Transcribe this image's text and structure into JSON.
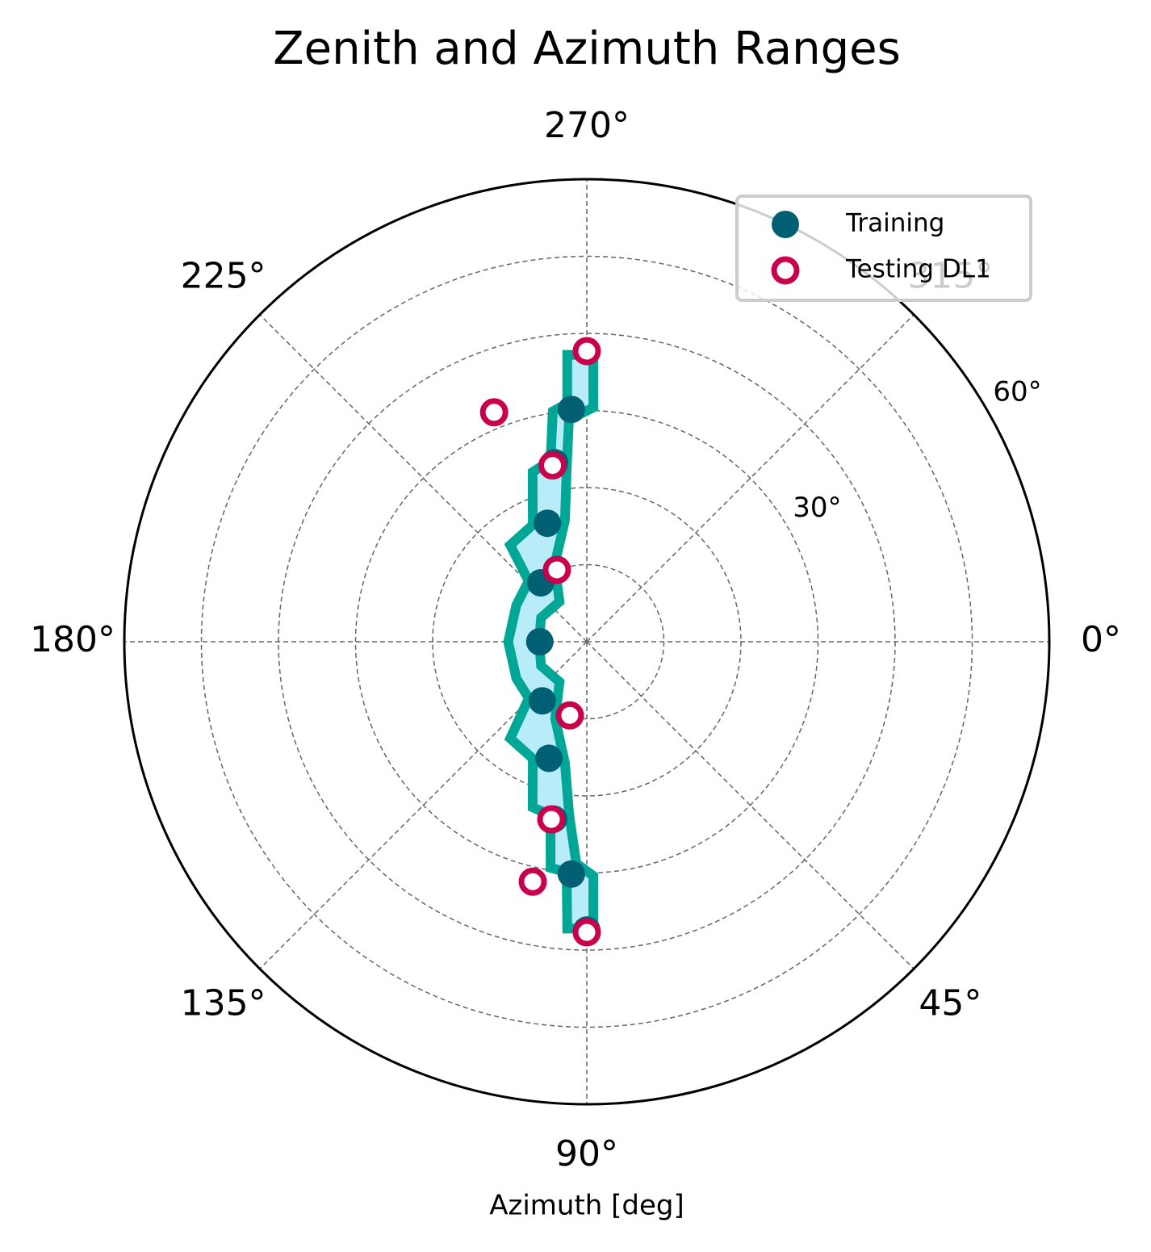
{
  "chart_data": {
    "type": "polar",
    "title": "Zenith and Azimuth Ranges",
    "xlabel": "Azimuth [deg]",
    "theta_zero": "east",
    "theta_direction": "clockwise",
    "rlim": [
      0,
      60
    ],
    "yticks": [
      {
        "value": 30,
        "label": "30°"
      },
      {
        "value": 60,
        "label": "60°"
      }
    ],
    "rgrid": [
      10,
      20,
      40,
      50
    ],
    "rlabel_position": 330,
    "xticks": [
      {
        "value": 0,
        "label": "0°"
      },
      {
        "value": 45,
        "label": "45°"
      },
      {
        "value": 90,
        "label": "90°"
      },
      {
        "value": 135,
        "label": "135°"
      },
      {
        "value": 180,
        "label": "180°"
      },
      {
        "value": 225,
        "label": "225°"
      },
      {
        "value": 270,
        "label": "270°"
      },
      {
        "value": 315,
        "label": "315°"
      }
    ],
    "grid": true,
    "legend": "upper right",
    "band": {
      "color": "#00a696",
      "fill": "#b8ecf8",
      "theta": [
        266.1,
        271.3,
        271.6,
        265.4,
        263.4,
        259.8,
        247.2,
        235.8,
        207.8,
        180,
        152.2,
        124.2,
        112.3,
        100.2,
        95.8,
        92.7,
        88.4,
        88.7,
        93.9,
        95.0,
        99.1,
        101.8,
        108.1,
        114.8,
        128.4,
        135.8,
        152.6,
        180,
        207.4,
        226.2,
        231.6,
        245.2,
        252.3,
        258.7,
        261.6,
        265.3
      ],
      "r": [
        37.3,
        37.2,
        30.4,
        28.9,
        22.7,
        16.0,
        10.8,
        6.3,
        6.7,
        6.2,
        6.7,
        6.3,
        10.8,
        16.0,
        22.6,
        28.8,
        30.4,
        37.2,
        37.3,
        30.0,
        29.7,
        23.0,
        22.6,
        16.7,
        16.0,
        10.5,
        10.3,
        10.2,
        10.3,
        10.9,
        16.0,
        16.7,
        23.1,
        24.0,
        30.2,
        31.0
      ]
    },
    "series": [
      {
        "name": "Training",
        "color": "#005f73",
        "marker": "filled",
        "theta": [
          270,
          266.2,
          259.8,
          251.6,
          232,
          180,
          127,
          108,
          100.6,
          93.8,
          90
        ],
        "r": [
          37.7,
          30.2,
          23.6,
          16.2,
          9.7,
          6.1,
          9.6,
          15.9,
          23.4,
          30.2,
          37.4
        ]
      },
      {
        "name": "Testing DL1",
        "color": "#c9004c",
        "marker": "open",
        "theta": [
          270,
          248,
          259,
          247.4,
          103,
          101.3,
          102.7,
          90
        ],
        "r": [
          37.7,
          32.1,
          23.3,
          10.1,
          9.8,
          23.5,
          31.9,
          37.7
        ]
      }
    ]
  }
}
